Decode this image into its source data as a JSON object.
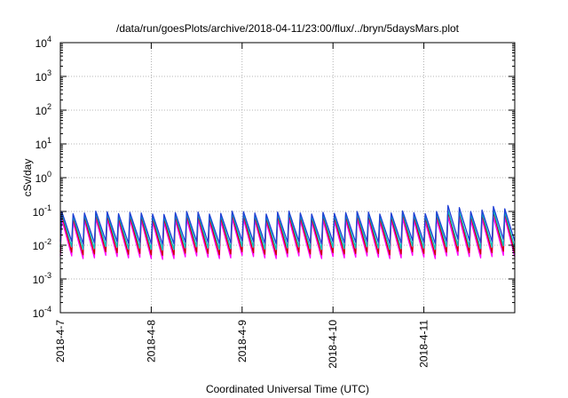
{
  "chart_data": {
    "type": "line",
    "title": "/data/run/goesPlots/archive/2018-04-11/23:00/flux/../bryn/5daysMars.plot",
    "xlabel": "Coordinated Universal Time (UTC)",
    "ylabel": "cSv/day",
    "yscale": "log",
    "ylim": [
      0.0001,
      10000
    ],
    "yticks": [
      {
        "base": "10",
        "exp": "4",
        "value": 10000
      },
      {
        "base": "10",
        "exp": "3",
        "value": 1000
      },
      {
        "base": "10",
        "exp": "2",
        "value": 100
      },
      {
        "base": "10",
        "exp": "1",
        "value": 10
      },
      {
        "base": "10",
        "exp": "0",
        "value": 1
      },
      {
        "base": "10",
        "exp": "-1",
        "value": 0.1
      },
      {
        "base": "10",
        "exp": "-2",
        "value": 0.01
      },
      {
        "base": "10",
        "exp": "-3",
        "value": 0.001
      },
      {
        "base": "10",
        "exp": "-4",
        "value": 0.0001
      }
    ],
    "xlim": [
      "2018-04-07",
      "2018-04-12"
    ],
    "xticks": [
      "2018-4-7",
      "2018-4-8",
      "2018-4-9",
      "2018-4-10",
      "2018-4-11"
    ],
    "grid": true,
    "cycle_hours": 3,
    "series": [
      {
        "color": "#ff00ff",
        "peak": [
          0.06,
          0.05,
          0.055,
          0.062,
          0.06,
          0.052,
          0.058,
          0.055,
          0.05,
          0.048,
          0.055,
          0.06,
          0.058,
          0.05,
          0.052,
          0.062,
          0.06,
          0.055,
          0.05,
          0.058,
          0.062,
          0.055,
          0.05,
          0.056,
          0.052,
          0.055,
          0.06,
          0.058,
          0.05,
          0.055,
          0.062,
          0.055,
          0.05,
          0.06,
          0.07,
          0.065,
          0.055,
          0.06,
          0.07,
          0.068
        ],
        "trough": [
          0.0048,
          0.004,
          0.0042,
          0.005,
          0.0046,
          0.0042,
          0.0044,
          0.004,
          0.0038,
          0.004,
          0.0045,
          0.0048,
          0.0044,
          0.004,
          0.0042,
          0.005,
          0.0046,
          0.0042,
          0.004,
          0.0045,
          0.0048,
          0.0042,
          0.004,
          0.0046,
          0.0042,
          0.0044,
          0.0048,
          0.0044,
          0.004,
          0.0042,
          0.005,
          0.0044,
          0.004,
          0.0048,
          0.005,
          0.0046,
          0.0042,
          0.0046,
          0.005,
          0.0045
        ]
      },
      {
        "color": "#cc0000",
        "peak": [
          0.08,
          0.065,
          0.07,
          0.082,
          0.078,
          0.066,
          0.074,
          0.07,
          0.064,
          0.062,
          0.072,
          0.08,
          0.076,
          0.064,
          0.068,
          0.082,
          0.078,
          0.07,
          0.064,
          0.076,
          0.082,
          0.07,
          0.064,
          0.074,
          0.068,
          0.072,
          0.08,
          0.076,
          0.064,
          0.07,
          0.084,
          0.072,
          0.066,
          0.08,
          0.1,
          0.09,
          0.074,
          0.08,
          0.1,
          0.09
        ],
        "trough": [
          0.0062,
          0.0052,
          0.0055,
          0.0064,
          0.006,
          0.0054,
          0.0057,
          0.0052,
          0.005,
          0.0052,
          0.0058,
          0.0062,
          0.0057,
          0.0052,
          0.0055,
          0.0064,
          0.006,
          0.0054,
          0.0052,
          0.0058,
          0.0062,
          0.0055,
          0.0052,
          0.006,
          0.0055,
          0.0057,
          0.0062,
          0.0057,
          0.0052,
          0.0055,
          0.0064,
          0.0057,
          0.0052,
          0.0062,
          0.0066,
          0.006,
          0.0055,
          0.006,
          0.0066,
          0.0058
        ]
      },
      {
        "color": "#00bcbc",
        "peak": [
          0.09,
          0.075,
          0.08,
          0.092,
          0.088,
          0.076,
          0.084,
          0.08,
          0.074,
          0.072,
          0.082,
          0.09,
          0.086,
          0.074,
          0.078,
          0.092,
          0.088,
          0.08,
          0.074,
          0.086,
          0.092,
          0.08,
          0.074,
          0.084,
          0.078,
          0.082,
          0.09,
          0.086,
          0.074,
          0.08,
          0.094,
          0.082,
          0.076,
          0.09,
          0.11,
          0.1,
          0.084,
          0.09,
          0.11,
          0.1
        ],
        "trough": [
          0.009,
          0.0075,
          0.008,
          0.0092,
          0.0088,
          0.0078,
          0.0083,
          0.0076,
          0.0072,
          0.0075,
          0.0084,
          0.009,
          0.0083,
          0.0076,
          0.008,
          0.0092,
          0.0088,
          0.0078,
          0.0075,
          0.0084,
          0.009,
          0.008,
          0.0075,
          0.0086,
          0.008,
          0.0083,
          0.009,
          0.0083,
          0.0076,
          0.008,
          0.0094,
          0.0083,
          0.0076,
          0.009,
          0.0096,
          0.0088,
          0.008,
          0.0088,
          0.0096,
          0.0085
        ]
      },
      {
        "color": "#1f3fd6",
        "peak": [
          0.1,
          0.085,
          0.09,
          0.102,
          0.098,
          0.086,
          0.094,
          0.09,
          0.084,
          0.082,
          0.092,
          0.1,
          0.096,
          0.084,
          0.088,
          0.102,
          0.098,
          0.09,
          0.084,
          0.096,
          0.102,
          0.09,
          0.084,
          0.094,
          0.088,
          0.092,
          0.1,
          0.096,
          0.084,
          0.09,
          0.104,
          0.092,
          0.086,
          0.1,
          0.15,
          0.13,
          0.1,
          0.11,
          0.14,
          0.12
        ],
        "trough": [
          0.013,
          0.011,
          0.0118,
          0.0135,
          0.0128,
          0.0114,
          0.0122,
          0.0112,
          0.0106,
          0.011,
          0.0124,
          0.013,
          0.0122,
          0.0112,
          0.0118,
          0.0135,
          0.0128,
          0.0114,
          0.011,
          0.0124,
          0.013,
          0.0118,
          0.011,
          0.0126,
          0.0118,
          0.0122,
          0.013,
          0.0122,
          0.0112,
          0.0118,
          0.0138,
          0.0122,
          0.0112,
          0.013,
          0.015,
          0.014,
          0.012,
          0.013,
          0.015,
          0.013
        ]
      }
    ]
  }
}
